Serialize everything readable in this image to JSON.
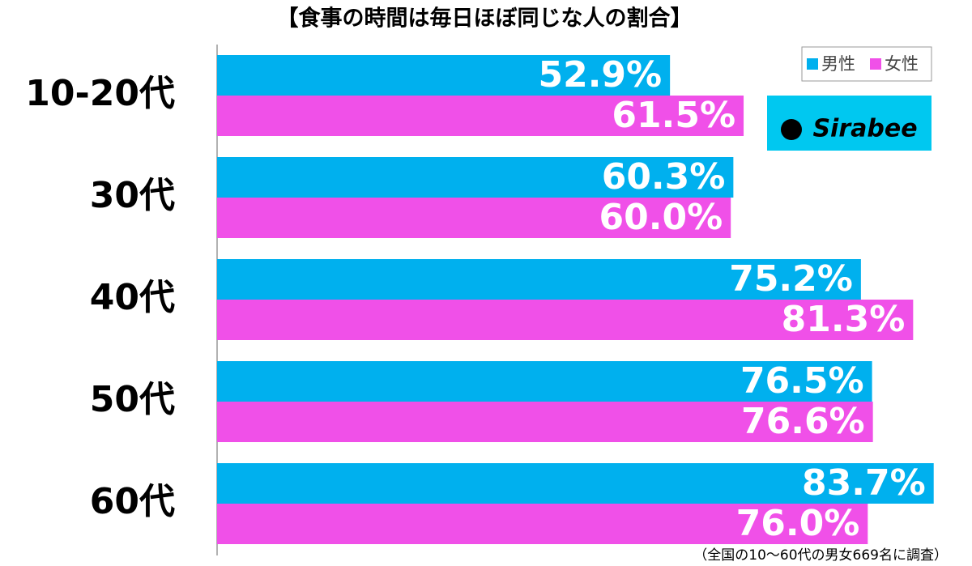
{
  "chart_data": {
    "type": "bar",
    "orientation": "horizontal",
    "title": "【食事の時間は毎日ほぼ同じな人の割合】",
    "note": "（全国の10〜60代の男女669名に調査）",
    "logo": "Sirabee",
    "categories": [
      "10-20代",
      "30代",
      "40代",
      "50代",
      "60代"
    ],
    "series": [
      {
        "name": "男性",
        "color": "#00b0ee",
        "values": [
          52.9,
          60.3,
          75.2,
          76.5,
          83.7
        ],
        "value_labels": [
          "52.9%",
          "60.3%",
          "75.2%",
          "76.5%",
          "83.7%"
        ]
      },
      {
        "name": "女性",
        "color": "#f050e8",
        "values": [
          61.5,
          60.0,
          81.3,
          76.6,
          76.0
        ],
        "value_labels": [
          "61.5%",
          "60.0%",
          "81.3%",
          "76.6%",
          "76.0%"
        ]
      }
    ]
  }
}
